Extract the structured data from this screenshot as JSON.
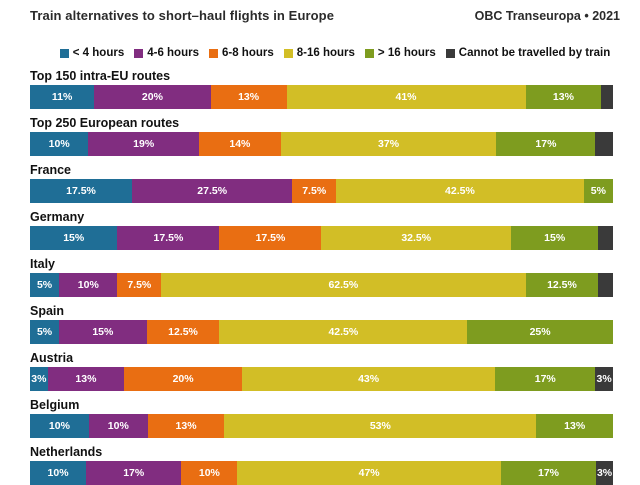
{
  "header": {
    "title": "Train alternatives to short–haul flights in Europe",
    "source": "OBC Transeuropa • 2021"
  },
  "chart_data": {
    "type": "bar",
    "stacked": true,
    "orientation": "horizontal",
    "unit": "%",
    "title": "Train alternatives to short–haul flights in Europe",
    "legend_position": "top-center",
    "categories": [
      "Top 150 intra-EU routes",
      "Top 250 European routes",
      "France",
      "Germany",
      "Italy",
      "Spain",
      "Austria",
      "Belgium",
      "Netherlands"
    ],
    "series": [
      {
        "name": "< 4 hours",
        "color": "#1f6e96",
        "values": [
          11,
          10,
          17.5,
          15,
          5,
          5,
          3,
          10,
          10
        ],
        "labels": [
          "11%",
          "10%",
          "17.5%",
          "15%",
          "5%",
          "5%",
          "3%",
          "10%",
          "10%"
        ]
      },
      {
        "name": "4-6 hours",
        "color": "#812d80",
        "values": [
          20,
          19,
          27.5,
          17.5,
          10,
          15,
          13,
          10,
          17
        ],
        "labels": [
          "20%",
          "19%",
          "27.5%",
          "17.5%",
          "10%",
          "15%",
          "13%",
          "10%",
          "17%"
        ]
      },
      {
        "name": "6-8 hours",
        "color": "#e96e12",
        "values": [
          13,
          14,
          7.5,
          17.5,
          7.5,
          12.5,
          20,
          13,
          10
        ],
        "labels": [
          "13%",
          "14%",
          "7.5%",
          "17.5%",
          "7.5%",
          "12.5%",
          "20%",
          "13%",
          "10%"
        ]
      },
      {
        "name": "8-16 hours",
        "color": "#d2be26",
        "values": [
          41,
          37,
          42.5,
          32.5,
          62.5,
          42.5,
          43,
          53,
          47
        ],
        "labels": [
          "41%",
          "37%",
          "42.5%",
          "32.5%",
          "62.5%",
          "42.5%",
          "43%",
          "53%",
          "47%"
        ]
      },
      {
        "name": "> 16 hours",
        "color": "#7e9c1f",
        "values": [
          13,
          17,
          5,
          15,
          12.5,
          25,
          17,
          13,
          17
        ],
        "labels": [
          "13%",
          "17%",
          "5%",
          "15%",
          "12.5%",
          "25%",
          "17%",
          "13%",
          "17%"
        ]
      },
      {
        "name": "Cannot be travelled by train",
        "color": "#3a3a3a",
        "values": [
          2,
          3,
          0,
          2.5,
          2.5,
          0,
          3,
          0,
          3
        ],
        "labels": [
          "",
          "",
          "",
          "",
          "",
          "",
          "3%",
          "",
          "3%"
        ]
      }
    ]
  }
}
